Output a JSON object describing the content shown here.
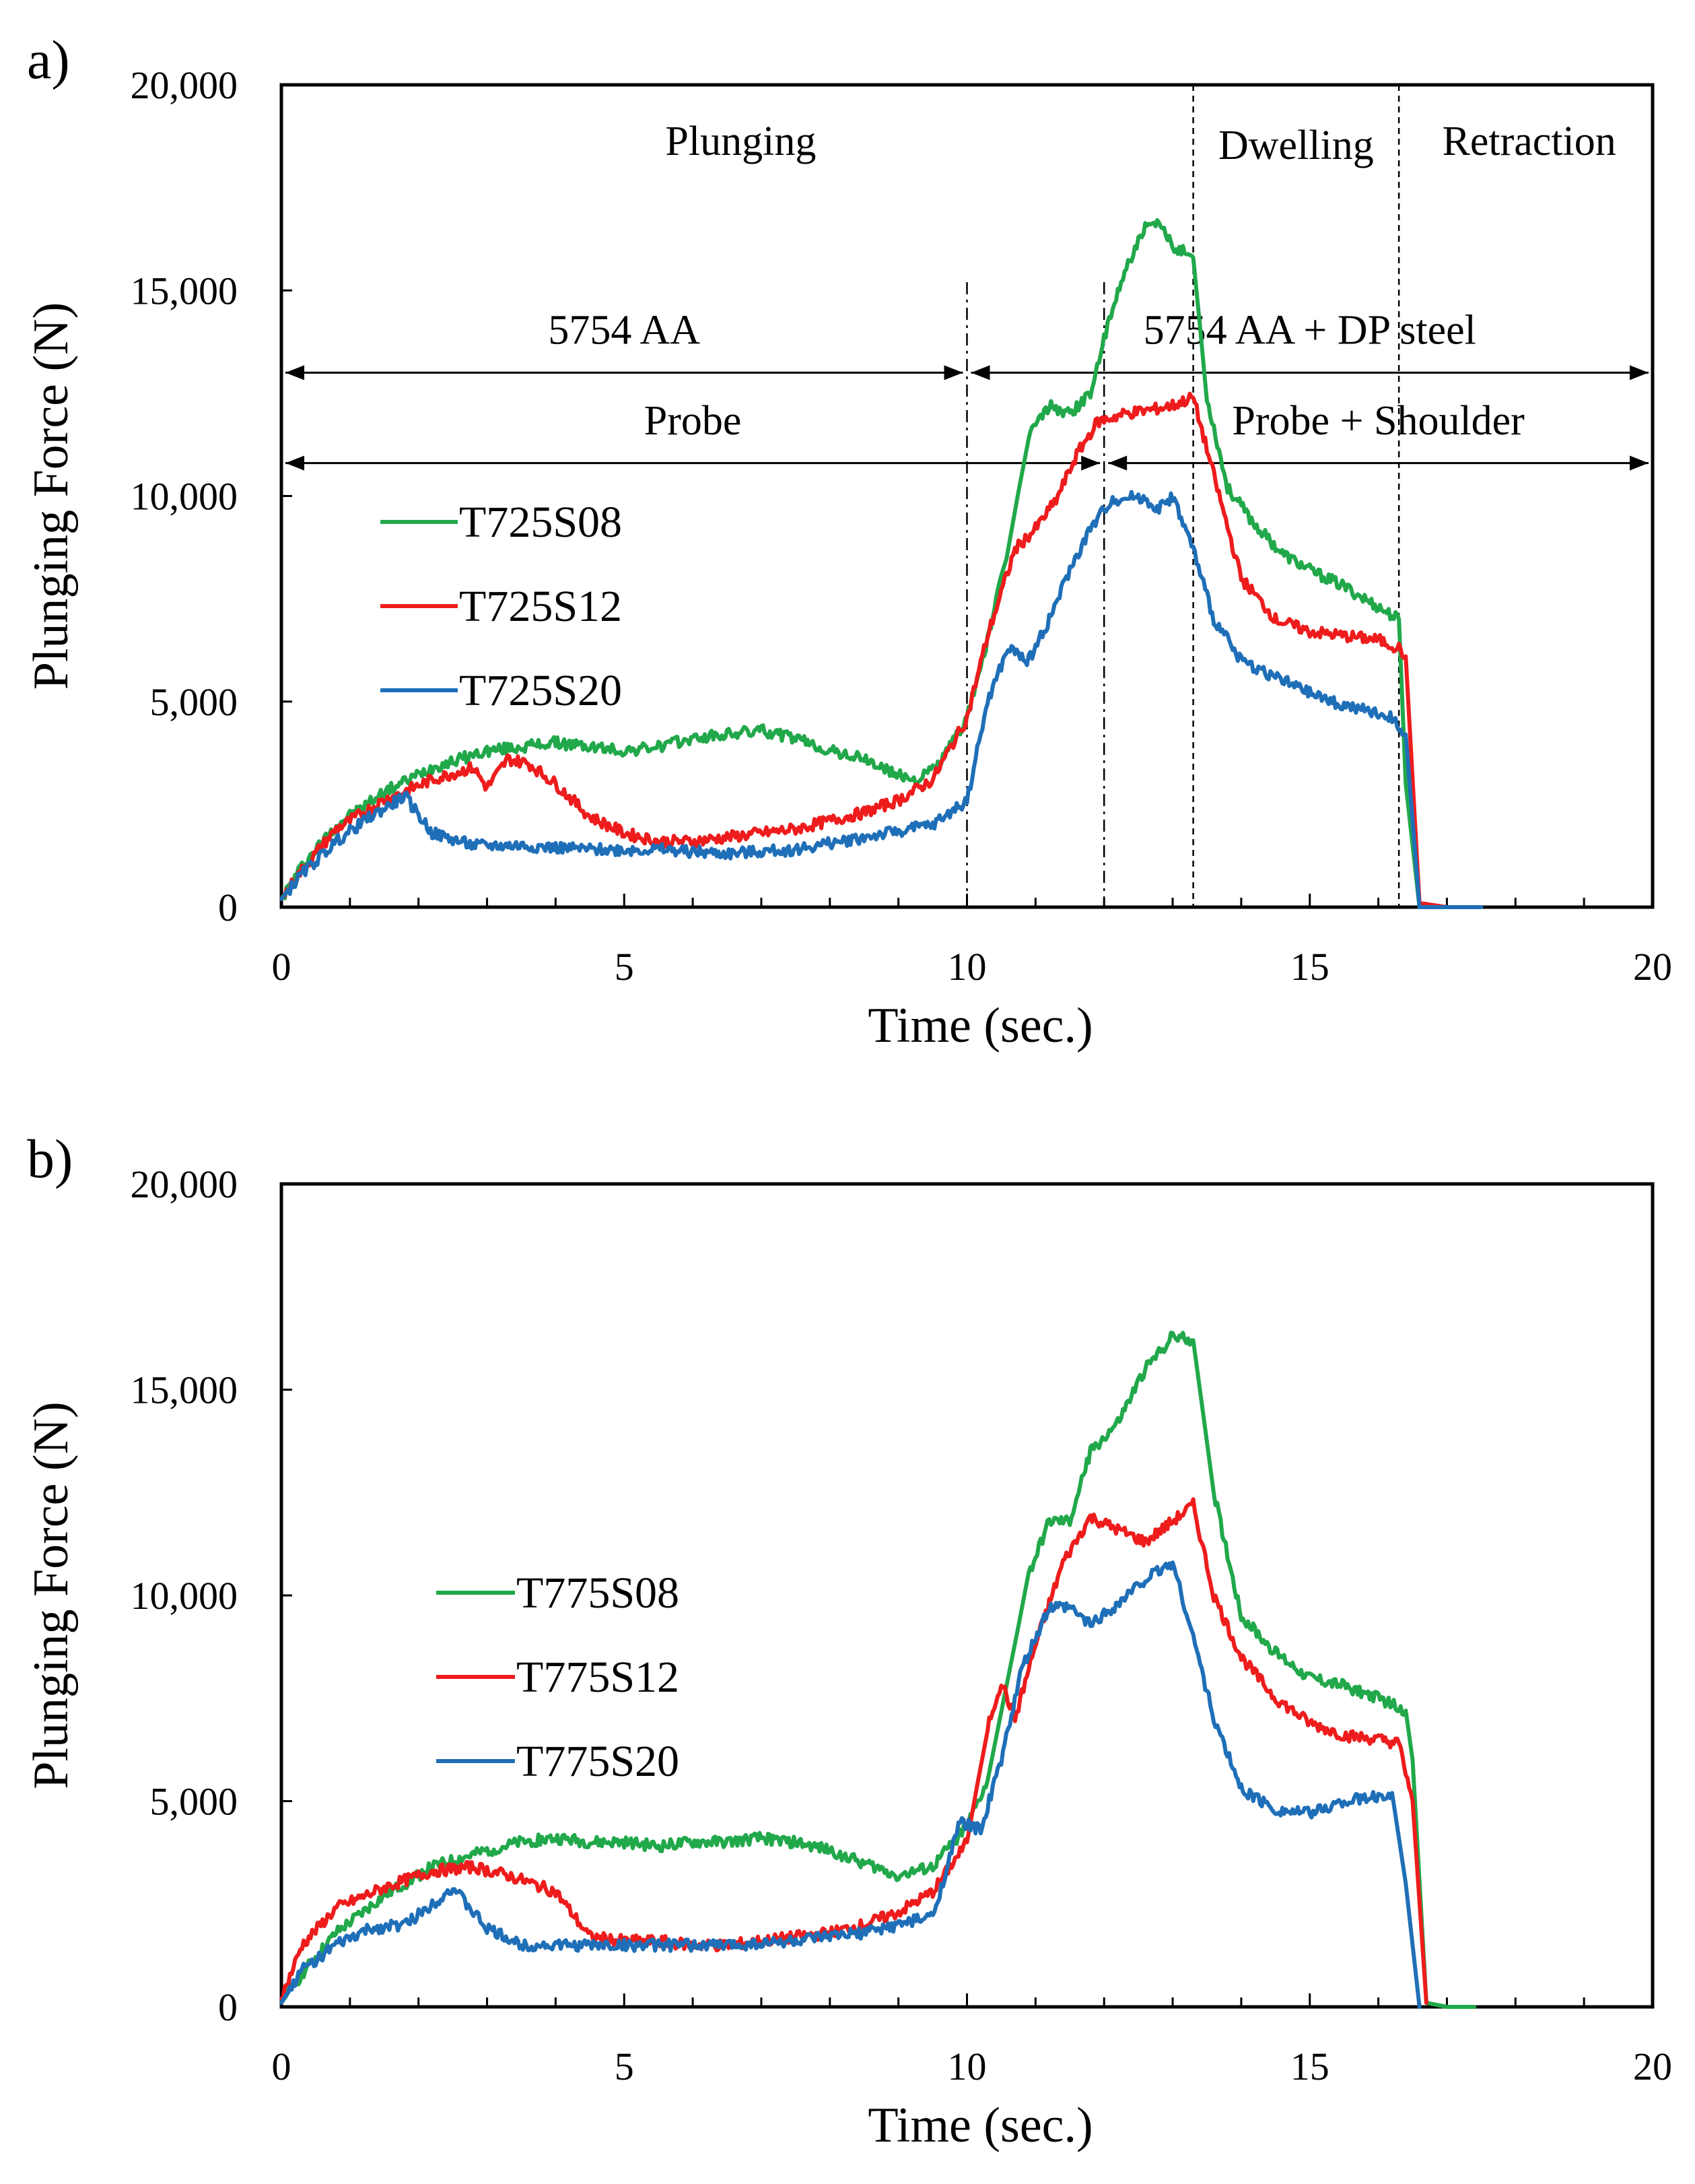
{
  "colors": {
    "T08": "#21a84a",
    "T12": "#ee1c1c",
    "T20": "#1f6fb8"
  },
  "chart_data": [
    {
      "panel_label": "a)",
      "type": "line",
      "xlabel": "Time (sec.)",
      "ylabel": "Plunging Force (N)",
      "xlim": [
        0,
        20
      ],
      "ylim": [
        0,
        20000
      ],
      "xticks": [
        0,
        5,
        10,
        15,
        20
      ],
      "xtick_labels": [
        "0",
        "5",
        "10",
        "15",
        "20"
      ],
      "yticks": [
        0,
        5000,
        10000,
        15000,
        20000
      ],
      "ytick_labels": [
        "0",
        "5,000",
        "10,000",
        "15,000",
        "20,000"
      ],
      "grid": false,
      "legend": "left-middle",
      "annotations": {
        "vlines": [
          10,
          12,
          13.3,
          16.3
        ],
        "phase_labels": [
          {
            "text": "Plunging",
            "x": 6.7,
            "y": 18300
          },
          {
            "text": "Dwelling",
            "x": 14.8,
            "y": 18200
          },
          {
            "text": "Retraction",
            "x": 18.2,
            "y": 18300
          }
        ],
        "arrows": [
          {
            "text": "5754 AA",
            "x0": 0,
            "x1": 10,
            "y": 13000,
            "label_y": 13700
          },
          {
            "text": "5754 AA + DP steel",
            "x0": 10,
            "x1": 20,
            "y": 13000,
            "label_y": 13700
          },
          {
            "text": "Probe",
            "x0": 0,
            "x1": 12,
            "y": 10800,
            "label_y": 11500
          },
          {
            "text": "Probe + Shoulder",
            "x0": 12,
            "x1": 20,
            "y": 10800,
            "label_y": 11500
          }
        ]
      },
      "series": [
        {
          "name": "T725S08",
          "color_key": "T08",
          "x": [
            0,
            0.3,
            0.8,
            1.5,
            2.2,
            3.0,
            3.5,
            4.0,
            4.5,
            5.0,
            5.5,
            6.0,
            6.5,
            7.0,
            7.5,
            8.0,
            8.5,
            9.0,
            9.3,
            9.6,
            10.0,
            10.3,
            10.6,
            10.9,
            11.2,
            11.5,
            11.8,
            12.0,
            12.3,
            12.6,
            12.8,
            13.0,
            13.3,
            13.5,
            13.8,
            14.2,
            14.6,
            15.0,
            15.5,
            16.0,
            16.3,
            16.4,
            16.6,
            17.0,
            17.3
          ],
          "y": [
            200,
            1000,
            2000,
            2800,
            3400,
            3800,
            3900,
            4000,
            3900,
            3800,
            3900,
            4100,
            4200,
            4300,
            4100,
            3800,
            3600,
            3200,
            3100,
            3500,
            4600,
            6500,
            8700,
            11500,
            12200,
            12000,
            12500,
            13800,
            15500,
            16500,
            16600,
            16100,
            15800,
            12400,
            10200,
            9300,
            8600,
            8200,
            7800,
            7300,
            7000,
            3000,
            0,
            0,
            0
          ]
        },
        {
          "name": "T725S12",
          "color_key": "T12",
          "x": [
            0,
            0.3,
            0.8,
            1.5,
            2.2,
            2.8,
            3.0,
            3.3,
            3.6,
            4.0,
            4.5,
            5.0,
            5.5,
            6.0,
            6.5,
            7.0,
            7.5,
            8.0,
            8.5,
            9.0,
            9.5,
            10.0,
            10.3,
            10.7,
            11.0,
            11.3,
            11.6,
            11.9,
            12.3,
            12.7,
            13.0,
            13.3,
            13.6,
            14.0,
            14.5,
            15.0,
            15.5,
            16.0,
            16.3,
            16.4,
            16.6,
            17.0,
            17.3
          ],
          "y": [
            200,
            900,
            1900,
            2600,
            3100,
            3400,
            2900,
            3600,
            3500,
            3000,
            2200,
            1800,
            1600,
            1600,
            1700,
            1800,
            1900,
            2100,
            2300,
            2600,
            3100,
            4600,
            6600,
            8700,
            9200,
            9900,
            11000,
            11800,
            12000,
            12100,
            12200,
            12400,
            10500,
            8000,
            7000,
            6700,
            6600,
            6500,
            6300,
            6100,
            100,
            0,
            0
          ]
        },
        {
          "name": "T725S20",
          "color_key": "T20",
          "x": [
            0,
            0.3,
            0.8,
            1.3,
            1.8,
            2.2,
            2.8,
            3.5,
            4.5,
            5.5,
            6.5,
            7.5,
            8.5,
            9.5,
            10.0,
            10.3,
            10.6,
            10.9,
            11.2,
            11.5,
            11.8,
            12.1,
            12.5,
            12.8,
            13.0,
            13.3,
            13.6,
            14.0,
            14.5,
            15.0,
            15.5,
            16.0,
            16.2,
            16.4,
            16.6,
            17.0,
            17.5
          ],
          "y": [
            200,
            800,
            1600,
            2200,
            2700,
            1800,
            1500,
            1500,
            1400,
            1400,
            1300,
            1400,
            1700,
            2000,
            2600,
            5000,
            6300,
            6000,
            7000,
            8200,
            9200,
            9900,
            10000,
            9700,
            10000,
            8700,
            7000,
            6000,
            5600,
            5200,
            4900,
            4700,
            4600,
            4200,
            0,
            0,
            0
          ]
        }
      ]
    },
    {
      "panel_label": "b)",
      "type": "line",
      "xlabel": "Time (sec.)",
      "ylabel": "Plunging Force (N)",
      "xlim": [
        0,
        20
      ],
      "ylim": [
        0,
        20000
      ],
      "xticks": [
        0,
        5,
        10,
        15,
        20
      ],
      "xtick_labels": [
        "0",
        "5",
        "10",
        "15",
        "20"
      ],
      "yticks": [
        0,
        5000,
        10000,
        15000,
        20000
      ],
      "ytick_labels": [
        "0",
        "5,000",
        "10,000",
        "15,000",
        "20,000"
      ],
      "grid": false,
      "legend": "left-middle",
      "series": [
        {
          "name": "T775S08",
          "color_key": "T08",
          "x": [
            0,
            0.3,
            0.8,
            1.5,
            2.2,
            3.0,
            3.5,
            4.0,
            4.5,
            5.0,
            5.5,
            6.0,
            6.5,
            7.0,
            7.5,
            8.0,
            8.5,
            9.0,
            9.5,
            10.0,
            10.3,
            10.6,
            10.9,
            11.2,
            11.5,
            11.8,
            12.2,
            12.6,
            13.0,
            13.3,
            13.6,
            14.0,
            14.5,
            15.0,
            15.5,
            16.0,
            16.4,
            16.5,
            16.7,
            17.0,
            17.4
          ],
          "y": [
            100,
            800,
            1800,
            2700,
            3400,
            3800,
            4000,
            4100,
            4000,
            4000,
            3900,
            4000,
            4000,
            4100,
            4000,
            3800,
            3500,
            3200,
            3400,
            4400,
            5500,
            8000,
            10500,
            11800,
            11800,
            13500,
            14200,
            15500,
            16300,
            16200,
            12500,
            9500,
            8600,
            8000,
            7800,
            7500,
            7200,
            6000,
            100,
            0,
            0
          ]
        },
        {
          "name": "T775S12",
          "color_key": "T12",
          "x": [
            0,
            0.3,
            0.8,
            1.5,
            2.2,
            2.8,
            3.3,
            4.0,
            4.5,
            5.0,
            5.5,
            6.0,
            6.5,
            7.0,
            7.5,
            8.0,
            8.5,
            9.0,
            9.5,
            10.0,
            10.3,
            10.5,
            10.7,
            11.0,
            11.4,
            11.8,
            12.2,
            12.6,
            13.0,
            13.3,
            13.6,
            14.0,
            14.5,
            15.0,
            15.5,
            16.0,
            16.3,
            16.5,
            16.7
          ],
          "y": [
            200,
            1500,
            2400,
            2900,
            3300,
            3400,
            3200,
            2800,
            1700,
            1600,
            1600,
            1500,
            1500,
            1600,
            1700,
            1800,
            2000,
            2300,
            2800,
            4000,
            6800,
            7900,
            7000,
            8800,
            10800,
            11900,
            11600,
            11300,
            11800,
            12200,
            10000,
            8500,
            7500,
            6900,
            6600,
            6500,
            6400,
            5000,
            100
          ]
        },
        {
          "name": "T775S20",
          "color_key": "T20",
          "x": [
            0,
            0.3,
            0.8,
            1.3,
            1.8,
            2.2,
            2.5,
            3.0,
            3.5,
            4.5,
            5.5,
            6.5,
            7.5,
            8.5,
            9.5,
            9.9,
            10.2,
            10.5,
            10.8,
            11.2,
            11.5,
            11.8,
            12.2,
            12.6,
            13.0,
            13.3,
            13.6,
            14.0,
            14.5,
            15.0,
            15.5,
            16.0,
            16.2,
            16.4,
            16.6
          ],
          "y": [
            100,
            900,
            1500,
            1900,
            2000,
            2500,
            2900,
            1900,
            1500,
            1500,
            1500,
            1500,
            1600,
            1800,
            2200,
            4500,
            4300,
            6000,
            8200,
            9700,
            9700,
            9300,
            9800,
            10400,
            10800,
            9000,
            7000,
            5300,
            4800,
            4700,
            5000,
            5100,
            5200,
            3000,
            0
          ]
        }
      ]
    }
  ]
}
